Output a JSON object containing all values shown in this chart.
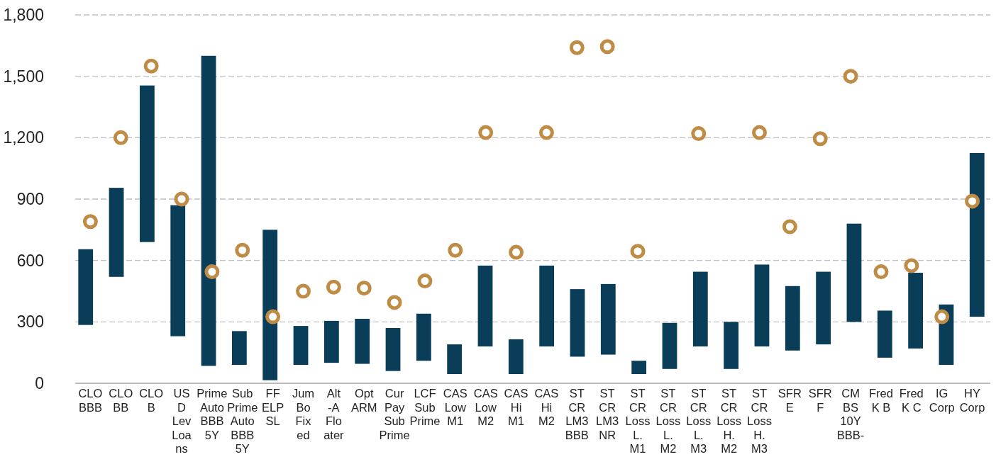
{
  "chart_data": {
    "type": "bar",
    "categories": [
      "CLO\nBBB",
      "CLO\nBB",
      "CLO\nB",
      "US\nD\nLev\nLoa\nns",
      "Prime\nAuto\nBBB\n5Y",
      "Sub\nPrime\nAuto\nBBB\n5Y",
      "FF\nELP\nSL",
      "Jum\nBo\nFix\ned",
      "Alt\n-A\nFlo\nater",
      "Opt\nARM",
      "Cur\nPay\nSub\nPrime",
      "LCF\nSub\nPrime",
      "CAS\nLow\nM1",
      "CAS\nLow\nM2",
      "CAS\nHi\nM1",
      "CAS\nHi\nM2",
      "ST\nCR\nLM3\nBBB",
      "ST\nCR\nLM3\nNR",
      "ST\nCR\nLoss\nL.\nM1",
      "ST\nCR\nLoss\nL.\nM2",
      "ST\nCR\nLoss\nL.\nM3",
      "ST\nCR\nLoss\nH.\nM2",
      "ST\nCR\nLoss\nH.\nM3",
      "SFR\nE",
      "SFR\nF",
      "CM\nBS\n10Y\nBBB-",
      "Fred\nK B",
      "Fred\nK C",
      "IG\nCorp",
      "HY\nCorp"
    ],
    "series": [
      {
        "color": "#0a3d58",
        "base": [
          285,
          520,
          690,
          230,
          85,
          90,
          15,
          90,
          100,
          95,
          60,
          110,
          45,
          180,
          45,
          180,
          130,
          140,
          45,
          70,
          180,
          70,
          180,
          160,
          190,
          300,
          125,
          170,
          90,
          325
        ],
        "values": [
          370,
          435,
          765,
          640,
          1515,
          165,
          735,
          190,
          205,
          220,
          210,
          230,
          145,
          395,
          170,
          395,
          330,
          345,
          65,
          225,
          365,
          230,
          400,
          315,
          355,
          480,
          230,
          370,
          295,
          800
        ]
      },
      {
        "type": "scatter",
        "color": "#c08b45",
        "marker": "circle",
        "values": [
          790,
          1200,
          1550,
          900,
          545,
          650,
          325,
          450,
          470,
          465,
          395,
          500,
          650,
          1225,
          640,
          1225,
          1640,
          1645,
          645,
          null,
          1220,
          null,
          1225,
          765,
          1195,
          1500,
          545,
          575,
          325,
          890
        ]
      }
    ],
    "ylim": [
      0,
      1800
    ],
    "yticks": [
      {
        "value": 0,
        "label": "0"
      },
      {
        "value": 300,
        "label": "300"
      },
      {
        "value": 600,
        "label": "600"
      },
      {
        "value": 900,
        "label": "900"
      },
      {
        "value": 1200,
        "label": "1,200"
      },
      {
        "value": 1500,
        "label": "1,500"
      },
      {
        "value": 1800,
        "label": "1,800"
      }
    ],
    "grid": "y",
    "line_style": "dashed"
  }
}
